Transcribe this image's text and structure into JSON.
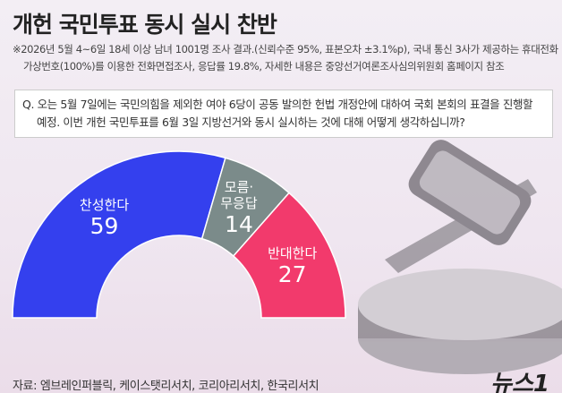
{
  "chart_data": {
    "type": "pie",
    "title": "개헌 국민투표 동시 실시 찬반",
    "subtitle": "※2026년 5월 4~6일 18세 이상 남녀 1001명 조사 결과.(신뢰수준 95%, 표본오차 ±3.1%p), 국내 통신 3사가 제공하는 휴대전화 가상번호(100%)를 이용한 전화면접조사, 응답률 19.8%, 자세한 내용은 중앙선거여론조사심의위원회 홈페이지 참조",
    "question": "Q. 오는 5월 7일에는 국민의힘을 제외한 여야 6당이 공동 발의한 헌법 개정안에 대하여 국회 본회의 표결을 진행할 예정. 이번 개헌 국민투표를 6월 3일 지방선거와 동시 실시하는 것에 대해 어떻게 생각하십니까?",
    "categories": [
      "찬성한다",
      "모름·무응답",
      "반대한다"
    ],
    "values": [
      59,
      14,
      27
    ],
    "colors": [
      "#3440ee",
      "#7b8b8a",
      "#f23a6c"
    ],
    "source": "자료: 엠브레인퍼블릭, 케이스탯리서치, 코리아리서치, 한국리서치",
    "logo": "뉴스1"
  }
}
